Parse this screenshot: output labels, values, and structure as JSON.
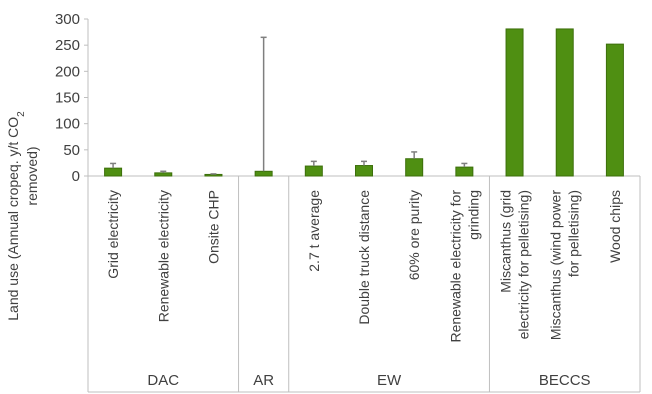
{
  "chart_data": {
    "type": "bar",
    "ylabel_main": "Land use (Annual cropeq. y/t CO",
    "ylabel_sub": "2",
    "ylabel_line2": "removed)",
    "ylim": [
      0,
      300
    ],
    "yticks": [
      0,
      50,
      100,
      150,
      200,
      250,
      300
    ],
    "categories": [
      "Grid electricity",
      "Renewable electricity",
      "Onsite CHP",
      "",
      "2.7 t average",
      "Double truck distance",
      "60% ore purity",
      "Renewable electricity for grinding",
      "Miscanthus (grid electricity for pelletising)",
      "Miscanthus (wind power for pelletising)",
      "Wood chips"
    ],
    "values": [
      15,
      6,
      3,
      9,
      19,
      20,
      33,
      17,
      281,
      281,
      252
    ],
    "error_upper": [
      24,
      9,
      4,
      265,
      28,
      28,
      46,
      24,
      281,
      281,
      252
    ],
    "error_lower": [
      15,
      6,
      3,
      9,
      19,
      20,
      33,
      17,
      281,
      281,
      252
    ],
    "groups": [
      {
        "label": "DAC",
        "start": 0,
        "end": 2
      },
      {
        "label": "AR",
        "start": 3,
        "end": 3
      },
      {
        "label": "EW",
        "start": 4,
        "end": 7
      },
      {
        "label": "BECCS",
        "start": 8,
        "end": 10
      }
    ],
    "colors": {
      "bar": "#4f8f12",
      "bar_stroke": "#3c6f0b",
      "error": "#7f7f7f",
      "axis": "#bfbfbf",
      "text": "#404040"
    },
    "grid": false,
    "legend": "none"
  }
}
